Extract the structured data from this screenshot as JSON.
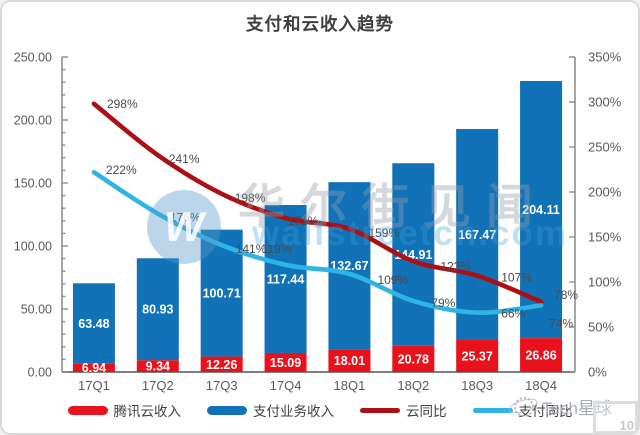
{
  "title": "支付和云收入趋势",
  "colors": {
    "cloud_bar": "#E8121C",
    "payment_bar": "#1272B8",
    "cloud_line": "#AC1016",
    "payment_line": "#2FB4E6",
    "axis": "#8F8F8F",
    "tick_label": "#595959",
    "bar_label": "#FFFFFF",
    "line_label": "#4A4A4A"
  },
  "chart_data": {
    "type": "combo: stacked bar + line",
    "categories": [
      "17Q1",
      "17Q2",
      "17Q3",
      "17Q4",
      "18Q1",
      "18Q2",
      "18Q3",
      "18Q4"
    ],
    "series": [
      {
        "name": "腾讯云收入",
        "type": "bar",
        "stack": "bottom",
        "axis": "left",
        "color_key": "cloud_bar",
        "values": [
          6.94,
          9.34,
          12.26,
          15.09,
          18.01,
          20.78,
          25.37,
          26.86
        ],
        "labels": [
          "6.94",
          "9.34",
          "12.26",
          "15.09",
          "18.01",
          "20.78",
          "25.37",
          "26.86"
        ]
      },
      {
        "name": "支付业务收入",
        "type": "bar",
        "stack": "top",
        "axis": "left",
        "color_key": "payment_bar",
        "values": [
          63.48,
          80.93,
          100.71,
          117.44,
          132.67,
          144.91,
          167.47,
          204.11
        ],
        "labels": [
          "63.48",
          "80.93",
          "100.71",
          "117.44",
          "132.67",
          "144.91",
          "167.47",
          "204.11"
        ]
      },
      {
        "name": "云同比",
        "type": "line",
        "axis": "right",
        "color_key": "cloud_line",
        "values": [
          298,
          241,
          198,
          171,
          159,
          123,
          107,
          78
        ],
        "labels": [
          "298%",
          "241%",
          "198%",
          "171%",
          "159%",
          "123%",
          "107%",
          "78%"
        ]
      },
      {
        "name": "支付同比",
        "type": "line",
        "axis": "right",
        "color_key": "payment_line",
        "values": [
          222,
          176,
          141,
          119,
          109,
          79,
          66,
          74
        ],
        "labels": [
          "222%",
          "176%",
          "141%",
          "119%",
          "109%",
          "79%",
          "66%",
          "74%"
        ]
      }
    ],
    "left_axis": {
      "min": 0,
      "max": 250,
      "major_step": 50,
      "minor_step": 10,
      "tick_labels": [
        "250.00",
        "200.00",
        "150.00",
        "100.00",
        "50.00",
        "0.00"
      ]
    },
    "right_axis": {
      "min": 0,
      "max": 350,
      "major_step": 50,
      "tick_labels": [
        "350%",
        "300%",
        "250%",
        "200%",
        "150%",
        "100%",
        "50%",
        "0%"
      ]
    },
    "grid": false,
    "legend_position": "bottom",
    "legend": [
      {
        "label": "腾讯云收入",
        "color_key": "cloud_bar",
        "marker": "bar"
      },
      {
        "label": "支付业务收入",
        "color_key": "payment_bar",
        "marker": "bar"
      },
      {
        "label": "云同比",
        "color_key": "cloud_line",
        "marker": "line"
      },
      {
        "label": "支付同比",
        "color_key": "payment_line",
        "marker": "line"
      }
    ]
  },
  "watermark": {
    "logo_letter": "W",
    "main": "华尔街见闻",
    "sub": "wallstreetcn.com",
    "brand": "Tech星球",
    "badge": "10"
  }
}
